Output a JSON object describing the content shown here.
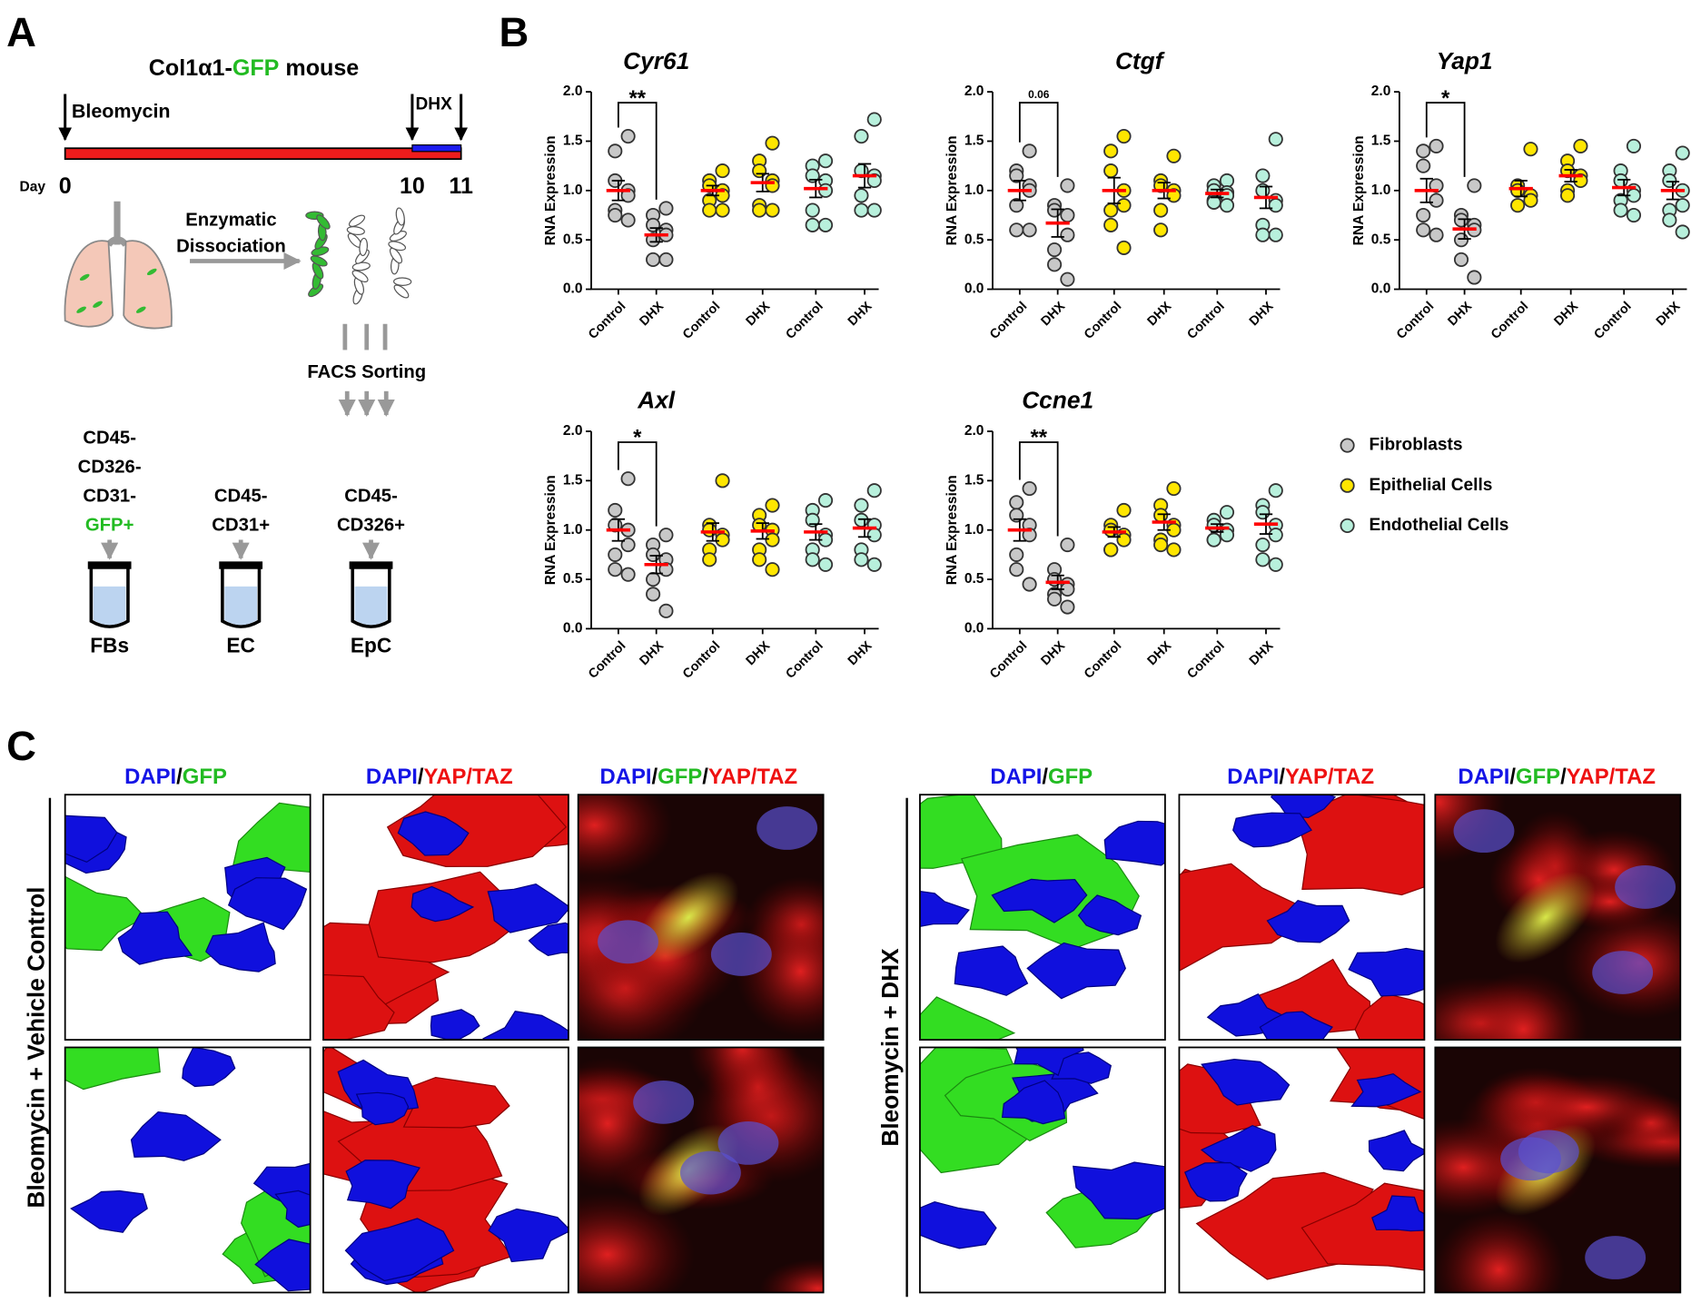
{
  "panel_labels": [
    "A",
    "B",
    "C"
  ],
  "panel_a": {
    "title_parts": [
      {
        "text": "Col1α1-",
        "color": "#000000"
      },
      {
        "text": "GFP",
        "color": "#22bb22"
      },
      {
        "text": " mouse",
        "color": "#000000"
      }
    ],
    "bleomycin": "Bleomycin",
    "dhx": "DHX",
    "day_label": "Day",
    "days": [
      "0",
      "10",
      "11"
    ],
    "dissociation": [
      "Enzymatic",
      "Dissociation"
    ],
    "facs": "FACS Sorting",
    "populations": [
      {
        "markers": [
          "CD45-",
          "CD326-",
          "CD31-",
          {
            "text": "GFP+",
            "color": "#22bb22"
          }
        ],
        "tube": "FBs"
      },
      {
        "markers": [
          "CD45-",
          "CD31+"
        ],
        "tube": "EC"
      },
      {
        "markers": [
          "CD45-",
          "CD326+"
        ],
        "tube": "EpC"
      }
    ]
  },
  "legend": [
    {
      "name": "Fibroblasts",
      "color": "#c8c8c8"
    },
    {
      "name": "Epithelial Cells",
      "color": "#ffe600"
    },
    {
      "name": "Endothelial Cells",
      "color": "#b8f0dc"
    }
  ],
  "chart_data": [
    {
      "type": "dot",
      "title": "Cyr61",
      "y_label": "RNA Expression",
      "ylim": [
        0,
        2
      ],
      "yticks": [
        {
          "value": 0,
          "label": "0.0"
        },
        0.5,
        {
          "value": 1,
          "label": "1.0"
        },
        1.5,
        {
          "value": 2,
          "label": "2.0"
        }
      ],
      "significance": "**",
      "mean_color": "#ff0000",
      "groups": [
        {
          "category": "Control",
          "values": [
            1.55,
            1.4,
            1.1,
            1.0,
            0.95,
            0.8,
            0.75,
            0.7
          ],
          "mean": 1.0,
          "sem": 0.1
        },
        {
          "category": "DHX",
          "values": [
            0.82,
            0.75,
            0.65,
            0.6,
            0.55,
            0.5,
            0.3,
            0.3
          ],
          "mean": 0.55,
          "sem": 0.07
        },
        {
          "category": "Control",
          "values": [
            1.2,
            1.1,
            1.05,
            1.0,
            0.95,
            0.9,
            0.8,
            0.8
          ],
          "mean": 1.0,
          "sem": 0.05
        },
        {
          "category": "DHX",
          "values": [
            1.48,
            1.3,
            1.2,
            1.1,
            1.05,
            0.85,
            0.8,
            0.8
          ],
          "mean": 1.08,
          "sem": 0.09
        },
        {
          "category": "Control",
          "values": [
            1.3,
            1.25,
            1.15,
            1.1,
            1.0,
            0.8,
            0.65,
            0.65
          ],
          "mean": 1.02,
          "sem": 0.09
        },
        {
          "category": "DHX",
          "values": [
            1.72,
            1.55,
            1.2,
            1.15,
            1.1,
            0.95,
            0.8,
            0.8
          ],
          "mean": 1.15,
          "sem": 0.12
        }
      ]
    },
    {
      "type": "dot",
      "title": "Ctgf",
      "y_label": "RNA Expression",
      "ylim": [
        0,
        2
      ],
      "yticks": [
        {
          "value": 0,
          "label": "0.0"
        },
        0.5,
        {
          "value": 1,
          "label": "1.0"
        },
        1.5,
        {
          "value": 2,
          "label": "2.0"
        }
      ],
      "significance": "0.06",
      "mean_color": "#ff0000",
      "groups": [
        {
          "category": "Control",
          "values": [
            1.4,
            1.2,
            1.15,
            1.05,
            1.0,
            0.85,
            0.6,
            0.6
          ],
          "mean": 1.0,
          "sem": 0.1
        },
        {
          "category": "DHX",
          "values": [
            1.05,
            0.85,
            0.8,
            0.75,
            0.55,
            0.4,
            0.25,
            0.1
          ],
          "mean": 0.67,
          "sem": 0.14
        },
        {
          "category": "Control",
          "values": [
            1.55,
            1.4,
            1.2,
            1.0,
            0.85,
            0.8,
            0.65,
            0.42
          ],
          "mean": 1.0,
          "sem": 0.13
        },
        {
          "category": "DHX",
          "values": [
            1.35,
            1.1,
            1.05,
            1.0,
            0.95,
            0.8,
            0.6
          ],
          "mean": 1.0,
          "sem": 0.08
        },
        {
          "category": "Control",
          "values": [
            1.1,
            1.05,
            1.0,
            0.98,
            0.95,
            0.9,
            0.88,
            0.85
          ],
          "mean": 0.97,
          "sem": 0.04
        },
        {
          "category": "DHX",
          "values": [
            1.52,
            1.15,
            1.0,
            0.9,
            0.85,
            0.65,
            0.55,
            0.55
          ],
          "mean": 0.93,
          "sem": 0.11
        }
      ]
    },
    {
      "type": "dot",
      "title": "Yap1",
      "y_label": "RNA Expression",
      "ylim": [
        0,
        2
      ],
      "yticks": [
        {
          "value": 0,
          "label": "0.0"
        },
        0.5,
        {
          "value": 1,
          "label": "1.0"
        },
        1.5,
        {
          "value": 2,
          "label": "2.0"
        }
      ],
      "significance": "*",
      "mean_color": "#ff0000",
      "groups": [
        {
          "category": "Control",
          "values": [
            1.45,
            1.4,
            1.25,
            1.05,
            0.9,
            0.75,
            0.6,
            0.55
          ],
          "mean": 1.0,
          "sem": 0.12
        },
        {
          "category": "DHX",
          "values": [
            1.05,
            0.75,
            0.7,
            0.65,
            0.6,
            0.5,
            0.3,
            0.12
          ],
          "mean": 0.61,
          "sem": 0.1
        },
        {
          "category": "Control",
          "values": [
            1.42,
            1.05,
            1.0,
            0.95,
            0.9,
            0.85
          ],
          "mean": 1.02,
          "sem": 0.08
        },
        {
          "category": "DHX",
          "values": [
            1.45,
            1.3,
            1.2,
            1.15,
            1.1,
            1.0,
            0.95
          ],
          "mean": 1.15,
          "sem": 0.06
        },
        {
          "category": "Control",
          "values": [
            1.45,
            1.2,
            1.1,
            1.0,
            0.95,
            0.9,
            0.8,
            0.75
          ],
          "mean": 1.03,
          "sem": 0.08
        },
        {
          "category": "DHX",
          "values": [
            1.38,
            1.2,
            1.1,
            1.0,
            0.85,
            0.8,
            0.7,
            0.58
          ],
          "mean": 1.0,
          "sem": 0.09
        }
      ]
    },
    {
      "type": "dot",
      "title": "Axl",
      "y_label": "RNA Expression",
      "ylim": [
        0,
        2
      ],
      "yticks": [
        {
          "value": 0,
          "label": "0.0"
        },
        0.5,
        {
          "value": 1,
          "label": "1.0"
        },
        1.5,
        {
          "value": 2,
          "label": "2.0"
        }
      ],
      "significance": "*",
      "mean_color": "#ff0000",
      "groups": [
        {
          "category": "Control",
          "values": [
            1.52,
            1.2,
            1.05,
            1.0,
            0.85,
            0.75,
            0.6,
            0.55
          ],
          "mean": 1.0,
          "sem": 0.11
        },
        {
          "category": "DHX",
          "values": [
            0.95,
            0.85,
            0.75,
            0.7,
            0.6,
            0.5,
            0.35,
            0.18
          ],
          "mean": 0.65,
          "sem": 0.09
        },
        {
          "category": "Control",
          "values": [
            1.5,
            1.05,
            1.0,
            0.95,
            0.9,
            0.8,
            0.7
          ],
          "mean": 0.98,
          "sem": 0.09
        },
        {
          "category": "DHX",
          "values": [
            1.25,
            1.15,
            1.05,
            1.0,
            0.9,
            0.8,
            0.7,
            0.6
          ],
          "mean": 0.99,
          "sem": 0.08
        },
        {
          "category": "Control",
          "values": [
            1.3,
            1.2,
            1.1,
            0.95,
            0.9,
            0.8,
            0.7,
            0.65
          ],
          "mean": 0.98,
          "sem": 0.08
        },
        {
          "category": "DHX",
          "values": [
            1.4,
            1.25,
            1.1,
            1.05,
            0.95,
            0.8,
            0.7,
            0.65
          ],
          "mean": 1.02,
          "sem": 0.09
        }
      ]
    },
    {
      "type": "dot",
      "title": "Ccne1",
      "y_label": "RNA Expression",
      "ylim": [
        0,
        2
      ],
      "yticks": [
        {
          "value": 0,
          "label": "0.0"
        },
        0.5,
        {
          "value": 1,
          "label": "1.0"
        },
        1.5,
        {
          "value": 2,
          "label": "2.0"
        }
      ],
      "significance": "**",
      "mean_color": "#ff0000",
      "groups": [
        {
          "category": "Control",
          "values": [
            1.42,
            1.28,
            1.15,
            1.05,
            0.95,
            0.75,
            0.6,
            0.45
          ],
          "mean": 1.0,
          "sem": 0.11
        },
        {
          "category": "DHX",
          "values": [
            0.85,
            0.6,
            0.5,
            0.45,
            0.4,
            0.35,
            0.3,
            0.22
          ],
          "mean": 0.47,
          "sem": 0.07
        },
        {
          "category": "Control",
          "values": [
            1.2,
            1.05,
            1.0,
            0.95,
            0.9,
            0.8,
            0.8
          ],
          "mean": 0.98,
          "sem": 0.05
        },
        {
          "category": "DHX",
          "values": [
            1.42,
            1.25,
            1.15,
            1.05,
            1.0,
            0.9,
            0.85,
            0.8
          ],
          "mean": 1.08,
          "sem": 0.08
        },
        {
          "category": "Control",
          "values": [
            1.18,
            1.1,
            1.05,
            1.0,
            0.95,
            0.9,
            0.9
          ],
          "mean": 1.02,
          "sem": 0.04
        },
        {
          "category": "DHX",
          "values": [
            1.4,
            1.25,
            1.18,
            1.05,
            0.95,
            0.85,
            0.7,
            0.65
          ],
          "mean": 1.06,
          "sem": 0.1
        }
      ]
    }
  ],
  "panel_c": {
    "conditions": [
      {
        "label": "Bleomycin + Vehicle Control",
        "headers": [
          [
            {
              "text": "DAPI",
              "color": "#1414e6"
            },
            {
              "text": "/",
              "color": "#000000"
            },
            {
              "text": "GFP",
              "color": "#22bb22"
            }
          ],
          [
            {
              "text": "DAPI",
              "color": "#1414e6"
            },
            {
              "text": "/",
              "color": "#000000"
            },
            {
              "text": "YAP/TAZ",
              "color": "#ee1111"
            }
          ],
          [
            {
              "text": "DAPI",
              "color": "#1414e6"
            },
            {
              "text": "/",
              "color": "#000000"
            },
            {
              "text": "GFP",
              "color": "#22bb22"
            },
            {
              "text": "/",
              "color": "#000000"
            },
            {
              "text": "YAP/TAZ",
              "color": "#ee1111"
            }
          ]
        ]
      },
      {
        "label": "Bleomycin + DHX",
        "headers": [
          [
            {
              "text": "DAPI",
              "color": "#1414e6"
            },
            {
              "text": "/",
              "color": "#000000"
            },
            {
              "text": "GFP",
              "color": "#22bb22"
            }
          ],
          [
            {
              "text": "DAPI",
              "color": "#1414e6"
            },
            {
              "text": "/",
              "color": "#000000"
            },
            {
              "text": "YAP/TAZ",
              "color": "#ee1111"
            }
          ],
          [
            {
              "text": "DAPI",
              "color": "#1414e6"
            },
            {
              "text": "/",
              "color": "#000000"
            },
            {
              "text": "GFP",
              "color": "#22bb22"
            },
            {
              "text": "/",
              "color": "#000000"
            },
            {
              "text": "YAP/TAZ",
              "color": "#ee1111"
            }
          ]
        ]
      }
    ]
  }
}
